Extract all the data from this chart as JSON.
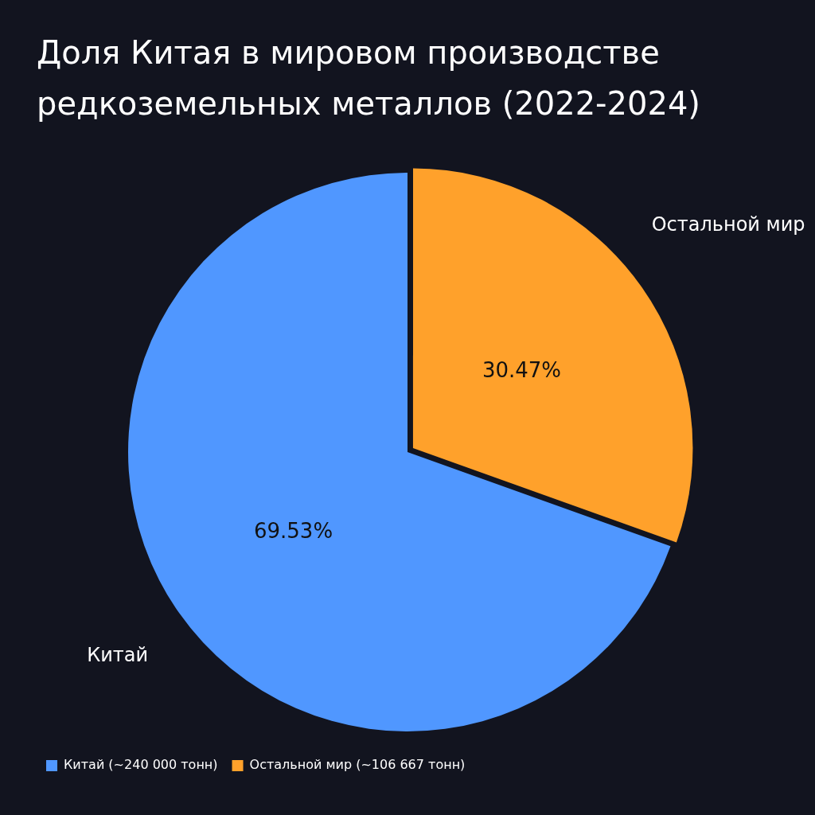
{
  "chart_data": {
    "type": "pie",
    "title": "Доля Китая в мировом производстве редкоземельных металлов (2022-2024)",
    "categories": [
      "Китай (~240 000 тонн)",
      "Остальной мир (~106 667 тонн)"
    ],
    "values": [
      69.53,
      30.47
    ],
    "colors": [
      "#5097ff",
      "#ffa12b"
    ],
    "value_labels": [
      "69.53%",
      "30.47%"
    ],
    "annotations": [
      "Китай",
      "Остальной мир"
    ],
    "legend": "bottom left"
  }
}
